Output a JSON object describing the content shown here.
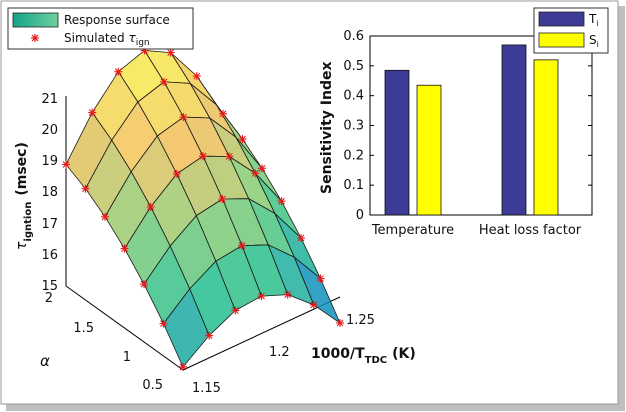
{
  "chart_data": [
    {
      "type": "surface3d",
      "legend": {
        "surface_label": "Response surface",
        "marker_label": "Simulated",
        "marker_symbol": "τ",
        "marker_sub": "ign"
      },
      "zlabel": {
        "main": "τ",
        "sub": "igntion",
        "tail": "(msec)"
      },
      "xlabel": {
        "main": "1000/T",
        "sub": "TDC",
        "tail": "(K)"
      },
      "ylabel": "α",
      "z_ticks": [
        "15",
        "16",
        "17",
        "18",
        "19",
        "20",
        "21"
      ],
      "x_ticks": [
        "1.15",
        "1.2",
        "1.25"
      ],
      "y_ticks": [
        "0.5",
        "1",
        "1.5",
        "2"
      ],
      "zlim": [
        15,
        21.5
      ],
      "xlim": [
        1.15,
        1.25
      ],
      "ylim": [
        0.5,
        2
      ]
    },
    {
      "type": "bar",
      "categories": [
        "Temperature",
        "Heat loss factor"
      ],
      "series": [
        {
          "name": "T",
          "sub": "i",
          "color": "#3c3c96",
          "values": [
            0.485,
            0.57
          ]
        },
        {
          "name": "S",
          "sub": "i",
          "color": "#ffff00",
          "values": [
            0.435,
            0.52
          ]
        }
      ],
      "ylabel": "Sensitivity Index",
      "yticks": [
        "0",
        "0.1",
        "0.2",
        "0.3",
        "0.4",
        "0.5",
        "0.6"
      ],
      "ylim": [
        0,
        0.6
      ]
    }
  ]
}
